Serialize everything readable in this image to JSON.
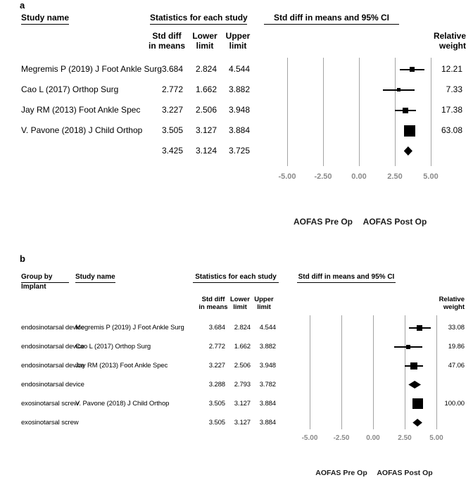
{
  "colors": {
    "marker": "#000000",
    "ci_line": "#000000",
    "gridline": "#a3a3a3",
    "tick_label": "#8a8a8a",
    "text": "#000000"
  },
  "chart_data": [
    {
      "type": "forest",
      "panel_label": "a",
      "headers": {
        "study": "Study name",
        "stats": "Statistics for each study",
        "ci": "Std diff in means and 95% CI"
      },
      "subheaders": {
        "std_diff": [
          "Std diff",
          "in means"
        ],
        "lower": [
          "Lower",
          "limit"
        ],
        "upper": [
          "Upper",
          "limit"
        ],
        "weight": [
          "Relative",
          "weight"
        ]
      },
      "x_ticks": [
        {
          "value": -5,
          "label": "-5.00"
        },
        {
          "value": -2.5,
          "label": "-2.50"
        },
        {
          "value": 0,
          "label": "0.00"
        },
        {
          "value": 2.5,
          "label": "2.50"
        },
        {
          "value": 5,
          "label": "5.00"
        }
      ],
      "axis_labels": {
        "left": "AOFAS Pre Op",
        "right": "AOFAS Post Op"
      },
      "rows": [
        {
          "study": "Megremis P (2019) J Foot Ankle Surg",
          "std_diff": "3.684",
          "lower": "2.824",
          "upper": "4.544",
          "weight": "12.21",
          "marker": "square"
        },
        {
          "study": "Cao L (2017) Orthop Surg",
          "std_diff": "2.772",
          "lower": "1.662",
          "upper": "3.882",
          "weight": "7.33",
          "marker": "square"
        },
        {
          "study": "Jay RM (2013) Foot Ankle Spec",
          "std_diff": "3.227",
          "lower": "2.506",
          "upper": "3.948",
          "weight": "17.38",
          "marker": "square"
        },
        {
          "study": "V. Pavone (2018) J Child Orthop",
          "std_diff": "3.505",
          "lower": "3.127",
          "upper": "3.884",
          "weight": "63.08",
          "marker": "square"
        },
        {
          "study": "",
          "std_diff": "3.425",
          "lower": "3.124",
          "upper": "3.725",
          "weight": "",
          "marker": "diamond"
        }
      ]
    },
    {
      "type": "forest",
      "panel_label": "b",
      "headers": {
        "group": [
          "Group by",
          "Implant"
        ],
        "study": "Study name",
        "stats": "Statistics for each study",
        "ci": "Std diff in means and 95% CI"
      },
      "subheaders": {
        "std_diff": [
          "Std diff",
          "in means"
        ],
        "lower": [
          "Lower",
          "limit"
        ],
        "upper": [
          "Upper",
          "limit"
        ],
        "weight": [
          "Relative",
          "weight"
        ]
      },
      "x_ticks": [
        {
          "value": -5,
          "label": "-5.00"
        },
        {
          "value": -2.5,
          "label": "-2.50"
        },
        {
          "value": 0,
          "label": "0.00"
        },
        {
          "value": 2.5,
          "label": "2.50"
        },
        {
          "value": 5,
          "label": "5.00"
        }
      ],
      "axis_labels": {
        "left": "AOFAS Pre Op",
        "right": "AOFAS Post Op"
      },
      "rows": [
        {
          "group": "endosinotarsal device",
          "study": "Megremis P (2019) J Foot Ankle Surg",
          "std_diff": "3.684",
          "lower": "2.824",
          "upper": "4.544",
          "weight": "33.08",
          "marker": "square"
        },
        {
          "group": "endosinotarsal device",
          "study": "Cao L (2017) Orthop Surg",
          "std_diff": "2.772",
          "lower": "1.662",
          "upper": "3.882",
          "weight": "19.86",
          "marker": "square"
        },
        {
          "group": "endosinotarsal device",
          "study": "Jay RM (2013) Foot Ankle Spec",
          "std_diff": "3.227",
          "lower": "2.506",
          "upper": "3.948",
          "weight": "47.06",
          "marker": "square"
        },
        {
          "group": "endosinotarsal device",
          "study": "",
          "std_diff": "3.288",
          "lower": "2.793",
          "upper": "3.782",
          "weight": "",
          "marker": "diamond"
        },
        {
          "group": "exosinotarsal screw",
          "study": "V. Pavone (2018) J Child Orthop",
          "std_diff": "3.505",
          "lower": "3.127",
          "upper": "3.884",
          "weight": "100.00",
          "marker": "square"
        },
        {
          "group": "exosinotarsal screw",
          "study": "",
          "std_diff": "3.505",
          "lower": "3.127",
          "upper": "3.884",
          "weight": "",
          "marker": "diamond"
        }
      ]
    }
  ]
}
